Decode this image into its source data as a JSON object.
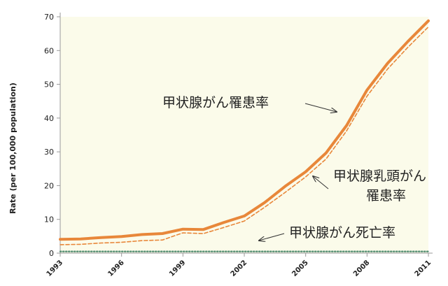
{
  "chart_data": {
    "type": "line",
    "title": "",
    "xlabel": "",
    "ylabel": "Rate (per 100,000 population)",
    "x": [
      1993,
      1994,
      1995,
      1996,
      1997,
      1998,
      1999,
      2000,
      2001,
      2002,
      2003,
      2004,
      2005,
      2006,
      2007,
      2008,
      2009,
      2010,
      2011
    ],
    "xticks": [
      "1993",
      "1996",
      "1999",
      "2002",
      "2005",
      "2008",
      "2011"
    ],
    "yticks": [
      "0",
      "10",
      "20",
      "30",
      "40",
      "50",
      "60",
      "70"
    ],
    "xlim": [
      1993,
      2011
    ],
    "ylim": [
      0,
      70
    ],
    "grid": false,
    "series": [
      {
        "name": "甲状腺がん罹患率",
        "style": "solid",
        "color": "#e8873a",
        "values": [
          4.1,
          4.2,
          4.6,
          4.9,
          5.5,
          5.8,
          7.1,
          7.0,
          9.1,
          11.0,
          15.0,
          19.8,
          24.1,
          29.7,
          37.8,
          48.3,
          56.2,
          62.7,
          68.8
        ]
      },
      {
        "name": "甲状腺乳頭がん罹患率",
        "style": "dashed",
        "color": "#e8873a",
        "values": [
          2.5,
          2.6,
          3.0,
          3.2,
          3.7,
          3.9,
          6.0,
          5.8,
          7.6,
          9.5,
          13.6,
          18.0,
          22.6,
          27.9,
          36.2,
          46.5,
          54.5,
          61.0,
          67.0
        ]
      },
      {
        "name": "甲状腺がん死亡率",
        "style": "dotted",
        "color": "#4f8a6e",
        "values": [
          0.5,
          0.5,
          0.5,
          0.5,
          0.5,
          0.5,
          0.5,
          0.5,
          0.5,
          0.5,
          0.5,
          0.5,
          0.5,
          0.5,
          0.5,
          0.5,
          0.5,
          0.5,
          0.5
        ]
      }
    ],
    "annotations": {
      "incidence": "甲状腺がん罹患率",
      "papillary_line1": "甲状腺乳頭がん",
      "papillary_line2": "罹患率",
      "mortality": "甲状腺がん死亡率"
    },
    "colors": {
      "plot_background": "#fbfbea",
      "axis": "#999999"
    }
  }
}
